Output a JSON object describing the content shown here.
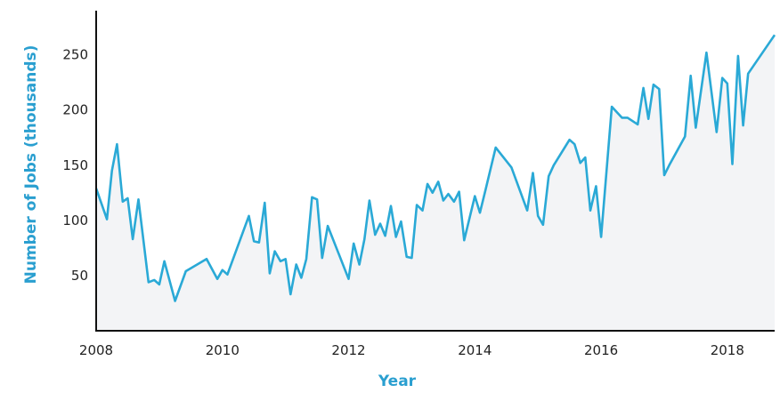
{
  "colors": {
    "line": "#2aa9d6",
    "area": "#f3f4f6",
    "axis": "#111111",
    "label": "#2a9fd0"
  },
  "chart_data": {
    "type": "area",
    "title": "",
    "xlabel": "Year",
    "ylabel": "Number of Jobs (thousands)",
    "xlim": [
      2008,
      2018.75
    ],
    "ylim": [
      0,
      290
    ],
    "x_ticks": [
      2008,
      2010,
      2012,
      2014,
      2016,
      2018
    ],
    "x_tick_labels": [
      "2008",
      "2010",
      "2012",
      "2014",
      "2016",
      "2018"
    ],
    "y_ticks": [
      50,
      100,
      150,
      200,
      250
    ],
    "y_tick_labels": [
      "50",
      "100",
      "150",
      "200",
      "250"
    ],
    "grid": false,
    "legend": "none",
    "series": [
      {
        "x": [
          2008.0,
          2008.17,
          2008.25,
          2008.33,
          2008.42,
          2008.5,
          2008.58,
          2008.67,
          2008.83,
          2008.92,
          2009.0,
          2009.08,
          2009.25,
          2009.42,
          2009.75,
          2009.92,
          2010.0,
          2010.08,
          2010.42,
          2010.5,
          2010.58,
          2010.67,
          2010.75,
          2010.83,
          2010.92,
          2011.0,
          2011.08,
          2011.17,
          2011.25,
          2011.33,
          2011.42,
          2011.5,
          2011.58,
          2011.67,
          2012.0,
          2012.08,
          2012.17,
          2012.25,
          2012.33,
          2012.42,
          2012.5,
          2012.58,
          2012.67,
          2012.75,
          2012.83,
          2012.92,
          2013.0,
          2013.08,
          2013.17,
          2013.25,
          2013.33,
          2013.42,
          2013.5,
          2013.58,
          2013.67,
          2013.75,
          2013.83,
          2014.0,
          2014.08,
          2014.17,
          2014.33,
          2014.58,
          2014.83,
          2014.92,
          2015.0,
          2015.08,
          2015.17,
          2015.25,
          2015.5,
          2015.58,
          2015.67,
          2015.75,
          2015.83,
          2015.92,
          2016.0,
          2016.17,
          2016.33,
          2016.42,
          2016.58,
          2016.67,
          2016.75,
          2016.83,
          2016.92,
          2017.0,
          2017.08,
          2017.33,
          2017.42,
          2017.5,
          2017.67,
          2017.83,
          2017.92,
          2018.0,
          2018.08,
          2018.17,
          2018.25,
          2018.33,
          2018.75
        ],
        "values": [
          129,
          101,
          145,
          169,
          117,
          120,
          83,
          119,
          44,
          46,
          42,
          63,
          27,
          54,
          65,
          47,
          55,
          51,
          104,
          81,
          80,
          116,
          52,
          72,
          63,
          65,
          33,
          60,
          48,
          65,
          121,
          119,
          66,
          95,
          47,
          79,
          60,
          83,
          118,
          87,
          97,
          86,
          113,
          85,
          99,
          67,
          66,
          114,
          109,
          133,
          125,
          135,
          118,
          124,
          117,
          126,
          82,
          122,
          107,
          128,
          166,
          148,
          109,
          143,
          104,
          96,
          140,
          150,
          173,
          169,
          152,
          157,
          109,
          131,
          85,
          203,
          193,
          193,
          187,
          220,
          192,
          223,
          219,
          141,
          150,
          176,
          231,
          184,
          252,
          180,
          229,
          224,
          151,
          249,
          186,
          233,
          268
        ]
      }
    ]
  }
}
